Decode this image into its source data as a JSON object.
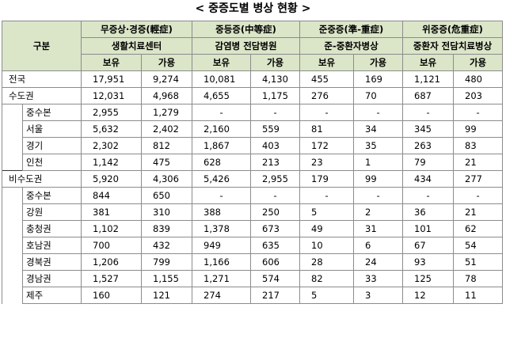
{
  "title": "< 중증도별 병상 현황 >",
  "header": {
    "gubun": "구분",
    "groups": [
      {
        "name": "무증상·경증(輕症)",
        "facility": "생활치료센터"
      },
      {
        "name": "중등증(中等症)",
        "facility": "감염병 전담병원"
      },
      {
        "name": "준중증(準-重症)",
        "facility": "준-중환자병상"
      },
      {
        "name": "위중증(危重症)",
        "facility": "중환자 전담치료병상"
      }
    ],
    "hold": "보유",
    "avail": "가용"
  },
  "rows": [
    {
      "label": "전국",
      "level": 0,
      "values": [
        "17,951",
        "9,274",
        "10,081",
        "4,130",
        "455",
        "169",
        "1,121",
        "480"
      ]
    },
    {
      "label": "수도권",
      "level": 0,
      "values": [
        "12,031",
        "4,968",
        "4,655",
        "1,175",
        "276",
        "70",
        "687",
        "203"
      ]
    },
    {
      "label": "중수본",
      "level": 1,
      "values": [
        "2,955",
        "1,279",
        "-",
        "-",
        "-",
        "-",
        "-",
        "-"
      ]
    },
    {
      "label": "서울",
      "level": 1,
      "values": [
        "5,632",
        "2,402",
        "2,160",
        "559",
        "81",
        "34",
        "345",
        "99"
      ]
    },
    {
      "label": "경기",
      "level": 1,
      "values": [
        "2,302",
        "812",
        "1,867",
        "403",
        "172",
        "35",
        "263",
        "83"
      ]
    },
    {
      "label": "인천",
      "level": 1,
      "values": [
        "1,142",
        "475",
        "628",
        "213",
        "23",
        "1",
        "79",
        "21"
      ]
    },
    {
      "label": "비수도권",
      "level": 0,
      "values": [
        "5,920",
        "4,306",
        "5,426",
        "2,955",
        "179",
        "99",
        "434",
        "277"
      ]
    },
    {
      "label": "중수본",
      "level": 1,
      "values": [
        "844",
        "650",
        "-",
        "-",
        "-",
        "-",
        "-",
        "-"
      ]
    },
    {
      "label": "강원",
      "level": 1,
      "values": [
        "381",
        "310",
        "388",
        "250",
        "5",
        "2",
        "36",
        "21"
      ]
    },
    {
      "label": "충청권",
      "level": 1,
      "values": [
        "1,102",
        "839",
        "1,378",
        "673",
        "49",
        "31",
        "101",
        "62"
      ]
    },
    {
      "label": "호남권",
      "level": 1,
      "values": [
        "700",
        "432",
        "949",
        "635",
        "10",
        "6",
        "67",
        "54"
      ]
    },
    {
      "label": "경북권",
      "level": 1,
      "values": [
        "1,206",
        "799",
        "1,166",
        "606",
        "28",
        "24",
        "93",
        "51"
      ]
    },
    {
      "label": "경남권",
      "level": 1,
      "values": [
        "1,527",
        "1,155",
        "1,271",
        "574",
        "82",
        "33",
        "125",
        "78"
      ]
    },
    {
      "label": "제주",
      "level": 1,
      "values": [
        "160",
        "121",
        "274",
        "217",
        "5",
        "3",
        "12",
        "11"
      ]
    }
  ]
}
